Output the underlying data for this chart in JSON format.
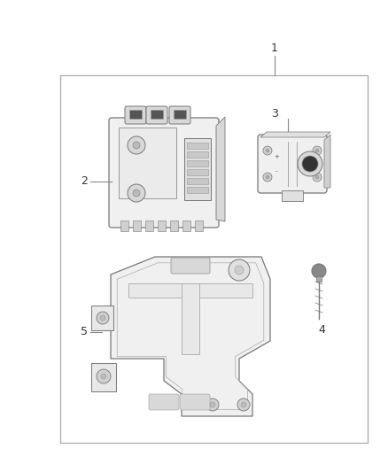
{
  "background_color": "#ffffff",
  "border_color": "#aaaaaa",
  "line_color": "#666666",
  "text_color": "#333333",
  "fig_width": 4.38,
  "fig_height": 5.33,
  "dpi": 100,
  "label_1": "1",
  "label_2": "2",
  "label_3": "3",
  "label_4": "4",
  "label_5": "5",
  "part_color": "#f8f8f8",
  "part_edge": "#777777",
  "detail_color": "#e8e8e8",
  "detail_edge": "#888888"
}
